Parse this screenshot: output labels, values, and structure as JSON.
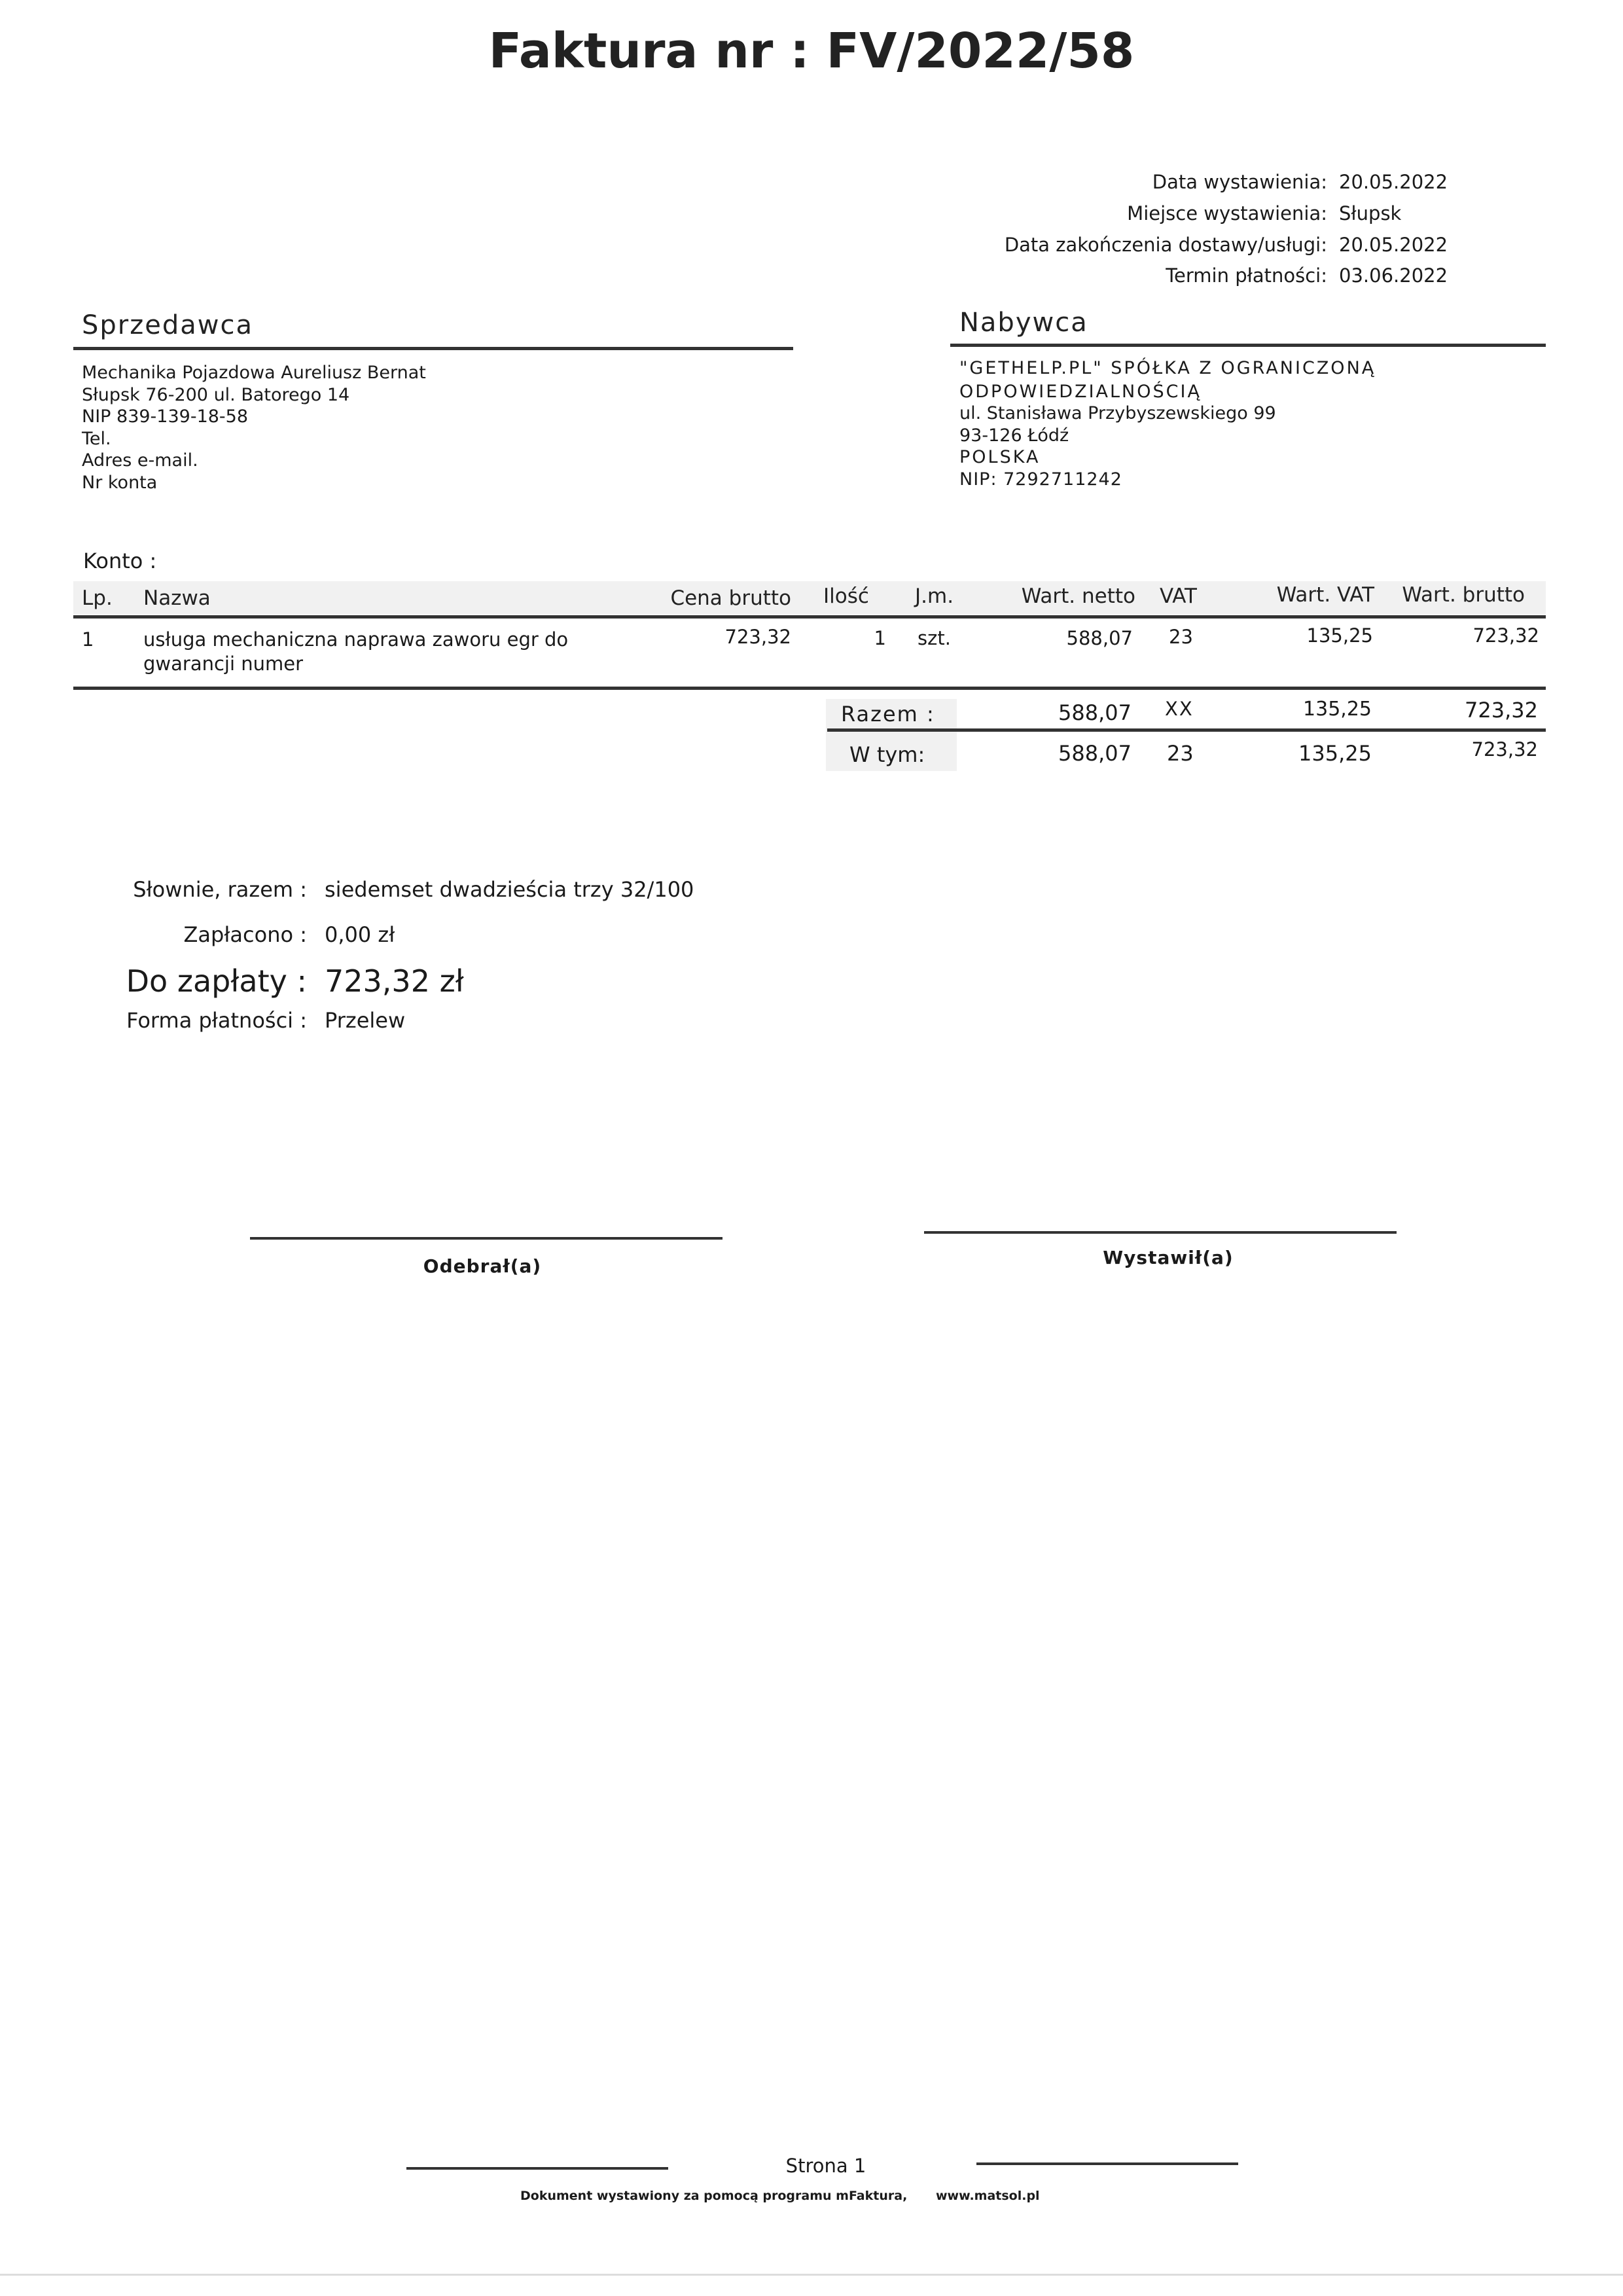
{
  "title": "Faktura nr : FV/2022/58",
  "dates": [
    {
      "label": "Data wystawienia:",
      "value": "20.05.2022"
    },
    {
      "label": "Miejsce wystawienia:",
      "value": "Słupsk"
    },
    {
      "label": "Data zakończenia dostawy/usługi:",
      "value": "20.05.2022"
    },
    {
      "label": "Termin płatności:",
      "value": "03.06.2022"
    }
  ],
  "seller": {
    "heading": "Sprzedawca",
    "lines": [
      "Mechanika Pojazdowa Aureliusz Bernat",
      "Słupsk 76-200 ul. Batorego 14",
      "NIP 839-139-18-58",
      "Tel.",
      "Adres e-mail.",
      "Nr konta"
    ]
  },
  "buyer": {
    "heading": "Nabywca",
    "lines": [
      "\"GETHELP.PL\" SPÓŁKA Z OGRANICZONĄ",
      "ODPOWIEDZIALNOŚCIĄ",
      "ul. Stanisława Przybyszewskiego 99",
      "93-126 Łódź",
      "POLSKA",
      "NIP: 7292711242"
    ]
  },
  "konto_label": "Konto :",
  "table": {
    "headers": {
      "lp": "Lp.",
      "name": "Nazwa",
      "price": "Cena brutto",
      "qty": "Ilość",
      "unit": "J.m.",
      "net": "Wart. netto",
      "vat": "VAT",
      "vat_value": "Wart. VAT",
      "gross": "Wart. brutto"
    },
    "rows": [
      {
        "lp": "1",
        "name1": "usługa mechaniczna naprawa zaworu egr  do",
        "name2": "gwarancji numer",
        "price": "723,32",
        "qty": "1",
        "unit": "szt.",
        "net": "588,07",
        "vat": "23",
        "vat_value": "135,25",
        "gross": "723,32"
      }
    ],
    "total": {
      "label": "Razem :",
      "net": "588,07",
      "vat": "XX",
      "vat_value": "135,25",
      "gross": "723,32"
    },
    "breakdown": {
      "label": "W tym:",
      "net": "588,07",
      "vat": "23",
      "vat_value": "135,25",
      "gross": "723,32"
    }
  },
  "summary": {
    "words_label": "Słownie, razem :",
    "words_value": "siedemset dwadzieścia trzy 32/100",
    "paid_label": "Zapłacono :",
    "paid_value": "0,00 zł",
    "due_label": "Do zapłaty :",
    "due_value": "723,32 zł",
    "method_label": "Forma płatności :",
    "method_value": "Przelew"
  },
  "signatures": {
    "received": "Odebrał(a)",
    "issued": "Wystawił(a)"
  },
  "footer": {
    "page": "Strona 1",
    "note": "Dokument wystawiony za pomocą programu mFaktura,",
    "url": "www.matsol.pl"
  }
}
